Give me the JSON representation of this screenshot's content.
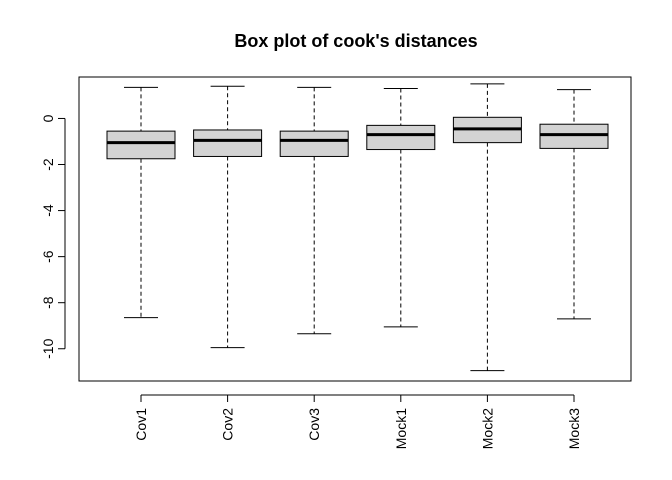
{
  "chart_data": {
    "type": "boxplot",
    "title": "Box plot of cook's distances",
    "xlabel": "",
    "ylabel": "",
    "ylim": [
      -11.4,
      1.8
    ],
    "yticks": [
      0,
      -2,
      -4,
      -6,
      -8,
      -10
    ],
    "categories": [
      "Cov1",
      "Cov2",
      "Cov3",
      "Mock1",
      "Mock2",
      "Mock3"
    ],
    "boxes": [
      {
        "whisker_low": -8.65,
        "q1": -1.75,
        "median": -1.05,
        "q3": -0.55,
        "whisker_high": 1.35
      },
      {
        "whisker_low": -9.95,
        "q1": -1.65,
        "median": -0.95,
        "q3": -0.5,
        "whisker_high": 1.4
      },
      {
        "whisker_low": -9.35,
        "q1": -1.65,
        "median": -0.95,
        "q3": -0.55,
        "whisker_high": 1.35
      },
      {
        "whisker_low": -9.05,
        "q1": -1.35,
        "median": -0.7,
        "q3": -0.3,
        "whisker_high": 1.3
      },
      {
        "whisker_low": -10.95,
        "q1": -1.05,
        "median": -0.45,
        "q3": 0.05,
        "whisker_high": 1.5
      },
      {
        "whisker_low": -8.7,
        "q1": -1.3,
        "median": -0.7,
        "q3": -0.25,
        "whisker_high": 1.25
      }
    ],
    "box_fill": "#d3d3d3",
    "grid": false,
    "legend": "none"
  }
}
